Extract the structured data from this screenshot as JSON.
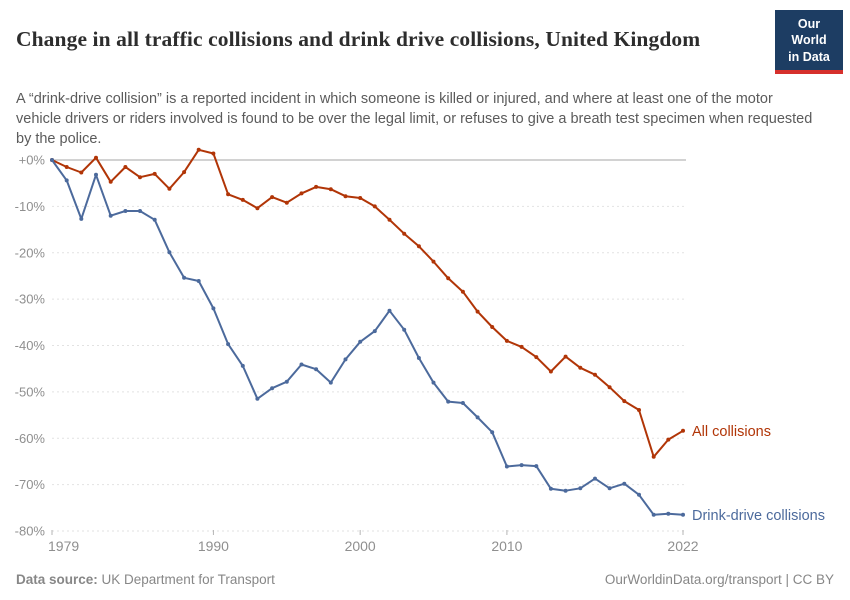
{
  "header": {
    "title": "Change in all traffic collisions and drink drive collisions, United Kingdom",
    "subtitle": "A “drink-drive collision” is a reported incident in which someone is killed or injured, and where at least one of the motor vehicle drivers or riders involved is found to be over the legal limit, or refuses to give a breath test specimen when requested by the police.",
    "logo": {
      "line1": "Our World",
      "line2": "in Data",
      "bg_color": "#1d3d63",
      "accent_color": "#d6302c"
    }
  },
  "chart_data": {
    "type": "line",
    "title": "Change in all traffic collisions and drink drive collisions, United Kingdom",
    "xlabel": "",
    "ylabel": "",
    "xlim": [
      1979,
      2022
    ],
    "ylim": [
      -80,
      3
    ],
    "grid": "horizontal-dashed",
    "legend": "line-end-labels",
    "x": [
      1979,
      1980,
      1981,
      1982,
      1983,
      1984,
      1985,
      1986,
      1987,
      1988,
      1989,
      1990,
      1991,
      1992,
      1993,
      1994,
      1995,
      1996,
      1997,
      1998,
      1999,
      2000,
      2001,
      2002,
      2003,
      2004,
      2005,
      2006,
      2007,
      2008,
      2009,
      2010,
      2011,
      2012,
      2013,
      2014,
      2015,
      2016,
      2017,
      2018,
      2019,
      2020,
      2021,
      2022
    ],
    "series": [
      {
        "name": "All collisions",
        "color": "#b13507",
        "values": [
          0,
          -1.5,
          -2.7,
          0.5,
          -4.7,
          -1.5,
          -3.7,
          -3.0,
          -6.2,
          -2.6,
          2.2,
          1.4,
          -7.4,
          -8.6,
          -10.4,
          -8.0,
          -9.2,
          -7.2,
          -5.8,
          -6.3,
          -7.8,
          -8.2,
          -10.0,
          -12.9,
          -15.9,
          -18.6,
          -21.9,
          -25.5,
          -28.4,
          -32.7,
          -36.0,
          -39.0,
          -40.3,
          -42.5,
          -45.6,
          -42.4,
          -44.8,
          -46.3,
          -49.0,
          -52.0,
          -53.9,
          -64.0,
          -60.3,
          -58.4
        ]
      },
      {
        "name": "Drink-drive collisions",
        "color": "#4c6a9c",
        "values": [
          0,
          -4.4,
          -12.7,
          -3.2,
          -12.0,
          -11.0,
          -11.0,
          -12.9,
          -19.9,
          -25.4,
          -26.1,
          -32.0,
          -39.7,
          -44.4,
          -51.5,
          -49.2,
          -47.8,
          -44.1,
          -45.1,
          -48.0,
          -43.0,
          -39.2,
          -36.9,
          -32.5,
          -36.6,
          -42.7,
          -48.0,
          -52.1,
          -52.4,
          -55.5,
          -58.7,
          -66.1,
          -65.8,
          -66.0,
          -70.9,
          -71.3,
          -70.8,
          -68.7,
          -70.8,
          -69.8,
          -72.2,
          -76.5,
          -76.3,
          -76.5
        ]
      }
    ],
    "y_ticks": [
      {
        "v": 0,
        "label": "+0%"
      },
      {
        "v": -10,
        "label": "-10%"
      },
      {
        "v": -20,
        "label": "-20%"
      },
      {
        "v": -30,
        "label": "-30%"
      },
      {
        "v": -40,
        "label": "-40%"
      },
      {
        "v": -50,
        "label": "-50%"
      },
      {
        "v": -60,
        "label": "-60%"
      },
      {
        "v": -70,
        "label": "-70%"
      },
      {
        "v": -80,
        "label": "-80%"
      }
    ],
    "x_ticks": [
      {
        "v": 1979,
        "label": "1979"
      },
      {
        "v": 1990,
        "label": "1990"
      },
      {
        "v": 2000,
        "label": "2000"
      },
      {
        "v": 2010,
        "label": "2010"
      },
      {
        "v": 2022,
        "label": "2022"
      }
    ]
  },
  "footer": {
    "source_prefix": "Data source:",
    "source_text": " UK Department for Transport",
    "link_text": "OurWorldinData.org/transport",
    "license_sep": " | ",
    "license_text": "CC BY"
  }
}
